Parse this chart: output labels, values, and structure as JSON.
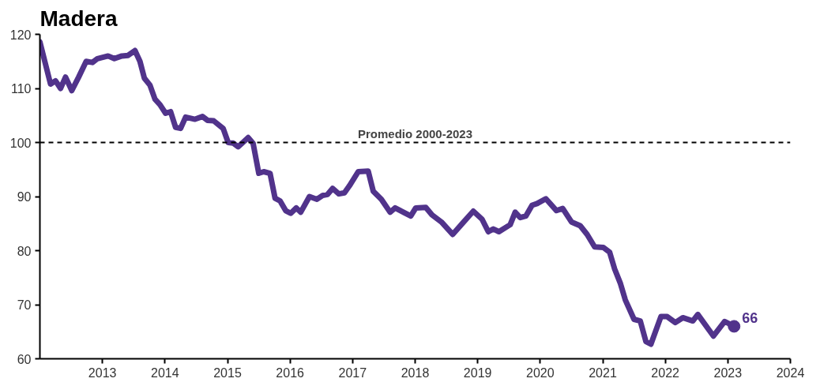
{
  "chart_data": {
    "type": "line",
    "title": "Madera",
    "x": [
      2012.0,
      2012.17,
      2012.25,
      2012.33,
      2012.41,
      2012.51,
      2012.62,
      2012.74,
      2012.84,
      2012.92,
      2013.09,
      2013.19,
      2013.31,
      2013.41,
      2013.52,
      2013.6,
      2013.67,
      2013.76,
      2013.84,
      2013.92,
      2014.01,
      2014.09,
      2014.17,
      2014.25,
      2014.33,
      2014.48,
      2014.6,
      2014.68,
      2014.78,
      2014.93,
      2015.01,
      2015.09,
      2015.17,
      2015.33,
      2015.41,
      2015.5,
      2015.58,
      2015.68,
      2015.76,
      2015.84,
      2015.93,
      2016.01,
      2016.1,
      2016.17,
      2016.31,
      2016.43,
      2016.52,
      2016.6,
      2016.68,
      2016.78,
      2016.87,
      2016.95,
      2017.09,
      2017.25,
      2017.33,
      2017.46,
      2017.6,
      2017.68,
      2017.93,
      2018.01,
      2018.17,
      2018.27,
      2018.42,
      2018.6,
      2018.76,
      2018.93,
      2019.07,
      2019.17,
      2019.25,
      2019.34,
      2019.52,
      2019.6,
      2019.68,
      2019.77,
      2019.87,
      2019.95,
      2020.09,
      2020.26,
      2020.36,
      2020.5,
      2020.64,
      2020.75,
      2020.87,
      2021.01,
      2021.11,
      2021.19,
      2021.28,
      2021.36,
      2021.5,
      2021.6,
      2021.69,
      2021.77,
      2021.93,
      2022.03,
      2022.16,
      2022.28,
      2022.44,
      2022.52,
      2022.77,
      2022.95,
      2023.1
    ],
    "series": [
      {
        "color": "#51338b",
        "values": [
          118.6,
          110.8,
          111.4,
          110.0,
          112.1,
          109.6,
          112.1,
          115.0,
          114.8,
          115.5,
          116.0,
          115.5,
          116.0,
          116.1,
          117.0,
          115.0,
          111.9,
          110.6,
          108.0,
          107.0,
          105.4,
          105.7,
          102.8,
          102.6,
          104.7,
          104.3,
          104.8,
          104.1,
          104.0,
          102.6,
          100.0,
          99.9,
          99.2,
          100.9,
          99.8,
          94.3,
          94.6,
          94.3,
          89.7,
          89.2,
          87.4,
          86.9,
          87.9,
          87.1,
          90.0,
          89.5,
          90.2,
          90.4,
          91.5,
          90.5,
          90.7,
          92.0,
          94.6,
          94.7,
          91.0,
          89.5,
          87.1,
          87.9,
          86.4,
          87.9,
          88.0,
          86.6,
          85.3,
          83.0,
          85.1,
          87.3,
          85.8,
          83.5,
          84.0,
          83.5,
          84.8,
          87.1,
          86.1,
          86.4,
          88.4,
          88.7,
          89.6,
          87.4,
          87.8,
          85.3,
          84.6,
          83.0,
          80.7,
          80.6,
          79.7,
          76.6,
          74.0,
          70.9,
          67.3,
          67.0,
          63.2,
          62.7,
          67.8,
          67.8,
          66.7,
          67.6,
          67.0,
          68.2,
          64.2,
          66.9,
          66
        ]
      }
    ],
    "xlim": [
      2012,
      2024
    ],
    "xticks": [
      2013,
      2014,
      2015,
      2016,
      2017,
      2018,
      2019,
      2020,
      2021,
      2022,
      2023,
      2024
    ],
    "ylim": [
      60,
      120
    ],
    "yticks": [
      60,
      70,
      80,
      90,
      100,
      110,
      120
    ],
    "ref_lines": [
      {
        "axis": "y",
        "value": 100,
        "label": "Promedio 2000-2023",
        "color": "#000000",
        "line_style": "dashed"
      }
    ],
    "annotations": [
      {
        "text": "66",
        "x": 2023.1,
        "y": 66
      }
    ],
    "line_style": "solid"
  }
}
